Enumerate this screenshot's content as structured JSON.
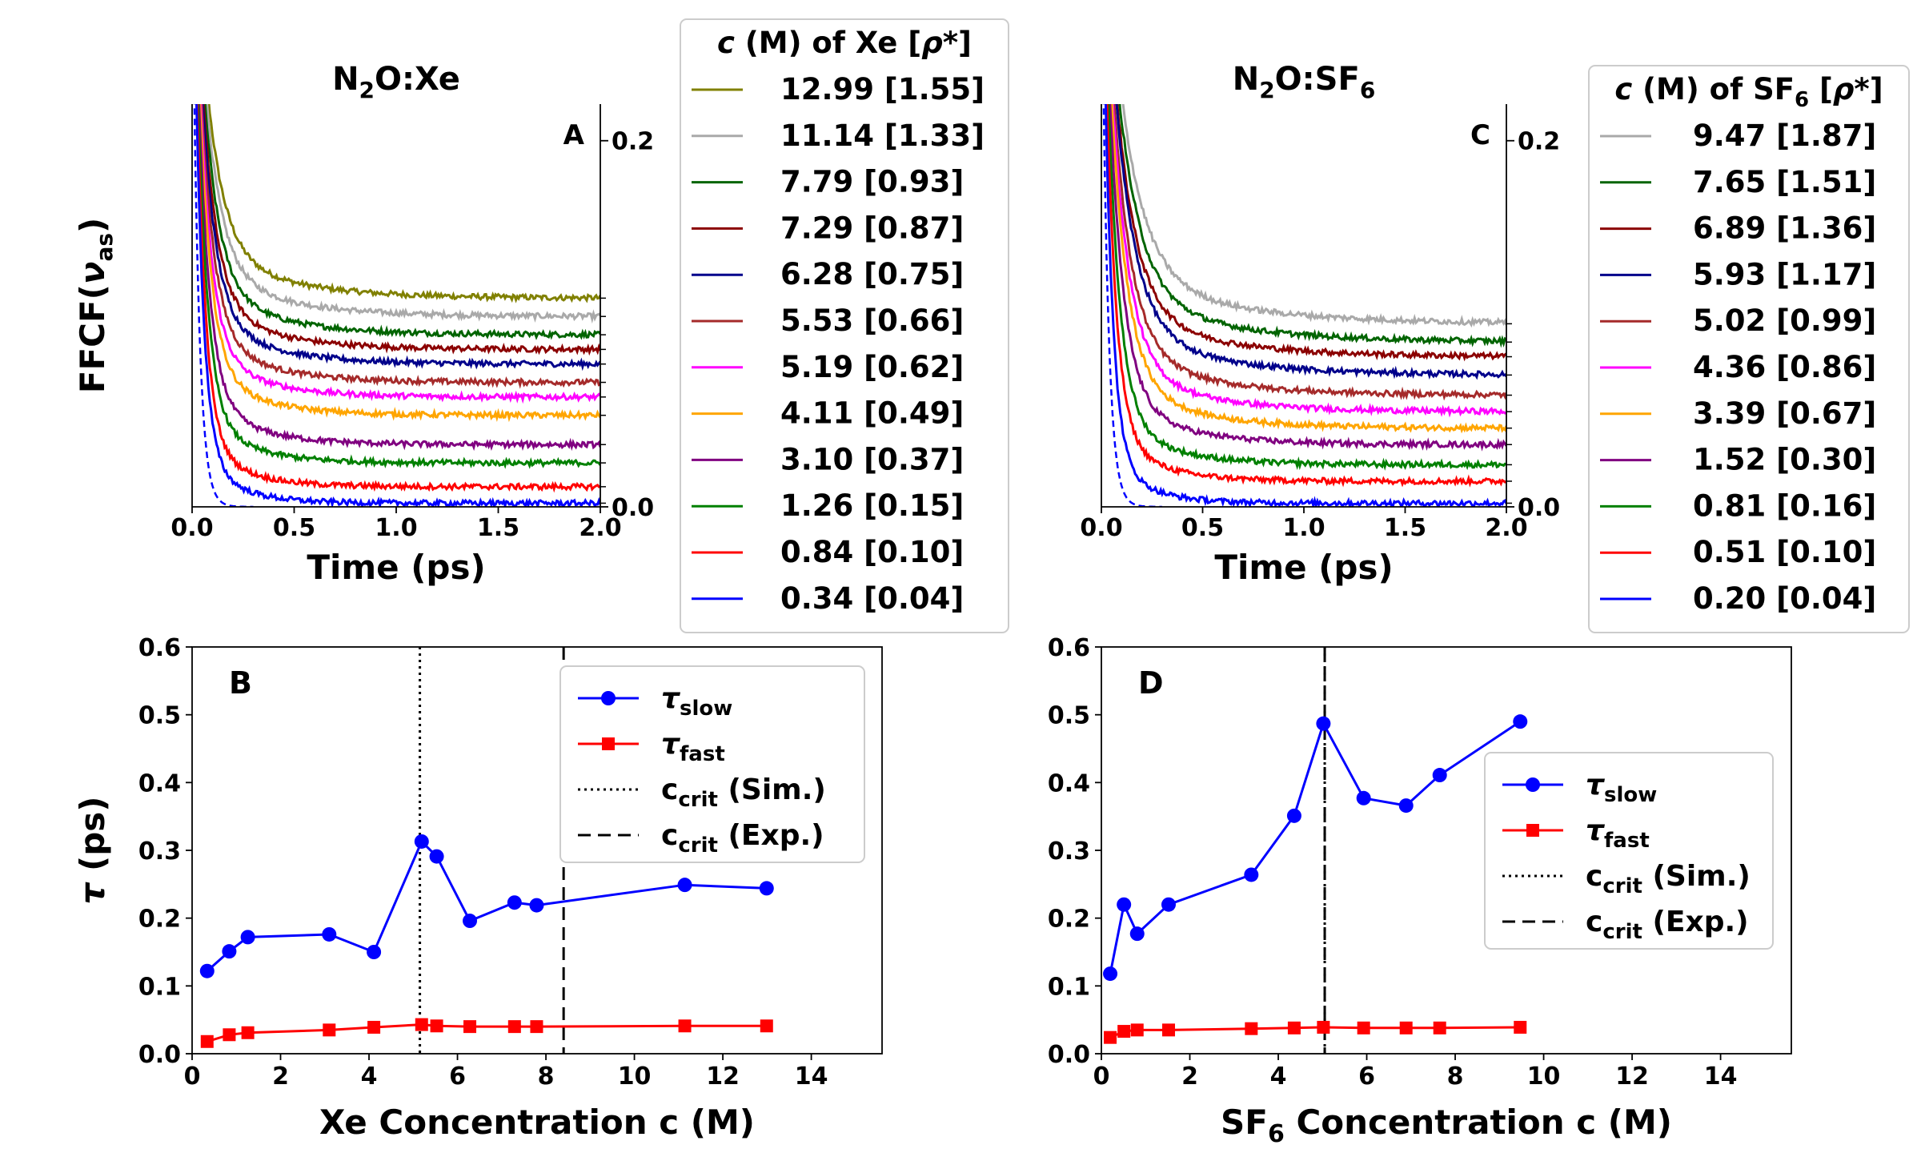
{
  "chart_data": [
    {
      "id": "A",
      "type": "line",
      "panel_label": "A",
      "title_parts": [
        "N",
        "2",
        "O:Xe"
      ],
      "xlabel": "Time (ps)",
      "ylabel_parts": [
        "FFCF(",
        "ν",
        "as",
        ")"
      ],
      "xlim": [
        0,
        2
      ],
      "ylim": [
        0,
        0.22
      ],
      "xticks": [
        "0.0",
        "0.5",
        "1.0",
        "1.5",
        "2.0"
      ],
      "yticks_right": [
        {
          "value": 0.0,
          "label": "0.0"
        },
        {
          "value": 0.2,
          "label": "0.2"
        }
      ],
      "legend_title": "c (M) of Xe [ρ*]",
      "series": [
        {
          "label": "12.99 [1.55]",
          "color": "#808000",
          "plateau": 0.114,
          "tau": 0.085
        },
        {
          "label": "11.14 [1.33]",
          "color": "#a9a9a9",
          "plateau": 0.104,
          "tau": 0.08
        },
        {
          "label": "7.79 [0.93]",
          "color": "#006400",
          "plateau": 0.094,
          "tau": 0.075
        },
        {
          "label": "7.29 [0.87]",
          "color": "#8b0000",
          "plateau": 0.086,
          "tau": 0.07
        },
        {
          "label": "6.28 [0.75]",
          "color": "#00008b",
          "plateau": 0.078,
          "tau": 0.068
        },
        {
          "label": "5.53 [0.66]",
          "color": "#a52a2a",
          "plateau": 0.068,
          "tau": 0.065
        },
        {
          "label": "5.19 [0.62]",
          "color": "#ff00ff",
          "plateau": 0.06,
          "tau": 0.06
        },
        {
          "label": "4.11 [0.49]",
          "color": "#ffa500",
          "plateau": 0.05,
          "tau": 0.058
        },
        {
          "label": "3.10 [0.37]",
          "color": "#800080",
          "plateau": 0.034,
          "tau": 0.055
        },
        {
          "label": "1.26 [0.15]",
          "color": "#008000",
          "plateau": 0.024,
          "tau": 0.05
        },
        {
          "label": "0.84 [0.10]",
          "color": "#ff0000",
          "plateau": 0.011,
          "tau": 0.045
        },
        {
          "label": "0.34 [0.04]",
          "color": "#0000ff",
          "plateau": 0.002,
          "tau": 0.04
        }
      ]
    },
    {
      "id": "C",
      "type": "line",
      "panel_label": "C",
      "title_parts": [
        "N",
        "2",
        "O:SF",
        "6"
      ],
      "xlabel": "Time (ps)",
      "xlim": [
        0,
        2
      ],
      "ylim": [
        0,
        0.22
      ],
      "xticks": [
        "0.0",
        "0.5",
        "1.0",
        "1.5",
        "2.0"
      ],
      "yticks_right": [
        {
          "value": 0.0,
          "label": "0.0"
        },
        {
          "value": 0.2,
          "label": "0.2"
        }
      ],
      "legend_title": "c (M) of SF6 [ρ*]",
      "series": [
        {
          "label": "9.47 [1.87]",
          "color": "#a9a9a9",
          "plateau": 0.1,
          "tau": 0.12
        },
        {
          "label": "7.65 [1.51]",
          "color": "#006400",
          "plateau": 0.09,
          "tau": 0.11
        },
        {
          "label": "6.89 [1.36]",
          "color": "#8b0000",
          "plateau": 0.082,
          "tau": 0.1
        },
        {
          "label": "5.93 [1.17]",
          "color": "#00008b",
          "plateau": 0.072,
          "tau": 0.1
        },
        {
          "label": "5.02 [0.99]",
          "color": "#a52a2a",
          "plateau": 0.061,
          "tau": 0.09
        },
        {
          "label": "4.36 [0.86]",
          "color": "#ff00ff",
          "plateau": 0.052,
          "tau": 0.085
        },
        {
          "label": "3.39 [0.67]",
          "color": "#ffa500",
          "plateau": 0.043,
          "tau": 0.08
        },
        {
          "label": "1.52 [0.30]",
          "color": "#800080",
          "plateau": 0.034,
          "tau": 0.07
        },
        {
          "label": "0.81 [0.16]",
          "color": "#008000",
          "plateau": 0.023,
          "tau": 0.06
        },
        {
          "label": "0.51 [0.10]",
          "color": "#ff0000",
          "plateau": 0.014,
          "tau": 0.05
        },
        {
          "label": "0.20 [0.04]",
          "color": "#0000ff",
          "plateau": 0.002,
          "tau": 0.04
        }
      ]
    },
    {
      "id": "B",
      "type": "line",
      "panel_label": "B",
      "xlabel": "Xe Concentration c (M)",
      "ylabel": "τ (ps)",
      "xlim": [
        0,
        15.6
      ],
      "ylim": [
        0,
        0.6
      ],
      "xticks": [
        0,
        2,
        4,
        6,
        8,
        10,
        12,
        14
      ],
      "yticks": [
        0.0,
        0.1,
        0.2,
        0.3,
        0.4,
        0.5,
        0.6
      ],
      "legend_position": "upper-right",
      "series": [
        {
          "name": "τ_slow",
          "color": "#0000ff",
          "marker": "circle",
          "x": [
            0.34,
            0.84,
            1.26,
            3.1,
            4.11,
            5.19,
            5.53,
            6.28,
            7.29,
            7.79,
            11.14,
            12.99
          ],
          "y": [
            0.122,
            0.151,
            0.172,
            0.176,
            0.15,
            0.313,
            0.291,
            0.196,
            0.223,
            0.219,
            0.249,
            0.244
          ]
        },
        {
          "name": "τ_fast",
          "color": "#ff0000",
          "marker": "square",
          "x": [
            0.34,
            0.84,
            1.26,
            3.1,
            4.11,
            5.19,
            5.53,
            6.28,
            7.29,
            7.79,
            11.14,
            12.99
          ],
          "y": [
            0.018,
            0.028,
            0.031,
            0.035,
            0.039,
            0.043,
            0.041,
            0.04,
            0.04,
            0.04,
            0.041,
            0.041
          ]
        }
      ],
      "vlines": [
        {
          "name": "c_crit (Sim.)",
          "x": 5.15,
          "style": "dotted"
        },
        {
          "name": "c_crit (Exp.)",
          "x": 8.4,
          "style": "dashed"
        }
      ],
      "legend": [
        {
          "main": "τ",
          "sub": "slow",
          "tail": ""
        },
        {
          "main": "τ",
          "sub": "fast",
          "tail": ""
        },
        {
          "main": "c",
          "sub": "crit",
          "tail": " (Sim.)"
        },
        {
          "main": "c",
          "sub": "crit",
          "tail": " (Exp.)"
        }
      ]
    },
    {
      "id": "D",
      "type": "line",
      "panel_label": "D",
      "xlabel_parts": [
        "SF",
        "6",
        " Concentration c (M)"
      ],
      "xlim": [
        0,
        15.6
      ],
      "ylim": [
        0,
        0.6
      ],
      "xticks": [
        0,
        2,
        4,
        6,
        8,
        10,
        12,
        14
      ],
      "yticks": [
        0.0,
        0.1,
        0.2,
        0.3,
        0.4,
        0.5,
        0.6
      ],
      "legend_position": "center-right",
      "series": [
        {
          "name": "τ_slow",
          "color": "#0000ff",
          "marker": "circle",
          "x": [
            0.2,
            0.51,
            0.81,
            1.52,
            3.39,
            4.36,
            5.02,
            5.93,
            6.89,
            7.65,
            9.47
          ],
          "y": [
            0.118,
            0.22,
            0.177,
            0.22,
            0.264,
            0.351,
            0.487,
            0.377,
            0.366,
            0.411,
            0.49
          ]
        },
        {
          "name": "τ_fast",
          "color": "#ff0000",
          "marker": "square",
          "x": [
            0.2,
            0.51,
            0.81,
            1.52,
            3.39,
            4.36,
            5.02,
            5.93,
            6.89,
            7.65,
            9.47
          ],
          "y": [
            0.024,
            0.033,
            0.035,
            0.035,
            0.037,
            0.038,
            0.039,
            0.038,
            0.038,
            0.038,
            0.039
          ]
        }
      ],
      "vlines": [
        {
          "name": "c_crit (Sim.)",
          "x": 5.05,
          "style": "dotted"
        },
        {
          "name": "c_crit (Exp.)",
          "x": 5.05,
          "style": "dashed"
        }
      ],
      "legend": [
        {
          "main": "τ",
          "sub": "slow",
          "tail": ""
        },
        {
          "main": "τ",
          "sub": "fast",
          "tail": ""
        },
        {
          "main": "c",
          "sub": "crit",
          "tail": " (Sim.)"
        },
        {
          "main": "c",
          "sub": "crit",
          "tail": " (Exp.)"
        }
      ]
    }
  ]
}
